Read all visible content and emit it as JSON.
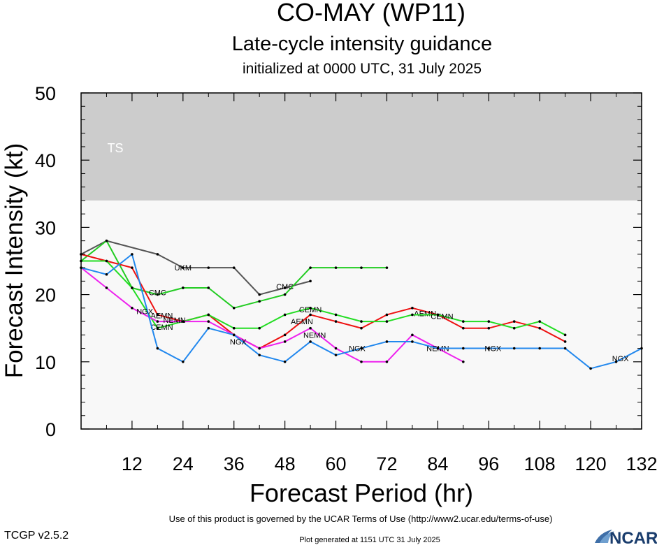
{
  "title": "CO-MAY (WP11)",
  "subtitle": "Late-cycle intensity guidance",
  "initialized": "initialized at 0000 UTC, 31 July 2025",
  "footer": {
    "version": "TCGP v2.5.2",
    "terms": "Use of this product is governed by the UCAR Terms of Use (http://www2.ucar.edu/terms-of-use)",
    "generated": "Plot generated at 1151 UTC   31 July 2025",
    "logo_text": "NCAR"
  },
  "chart_data": {
    "type": "line",
    "xlabel": "Forecast Period (hr)",
    "ylabel": "Forecast Intensity (kt)",
    "xlim": [
      0,
      132
    ],
    "ylim": [
      0,
      50
    ],
    "xticks": [
      12,
      24,
      36,
      48,
      60,
      72,
      84,
      96,
      108,
      120,
      132
    ],
    "yticks": [
      0,
      10,
      20,
      30,
      40,
      50
    ],
    "bands": [
      {
        "label": "TS",
        "from": 34,
        "to": 50,
        "color": "#cccccc"
      }
    ],
    "plot_background": "#f8f8f8",
    "series": [
      {
        "name": "UKM",
        "color": "#555555",
        "label_at": [
          24,
          24
        ],
        "points": [
          [
            0,
            26
          ],
          [
            6,
            28
          ],
          [
            18,
            26
          ],
          [
            24,
            24
          ],
          [
            30,
            24
          ],
          [
            36,
            24
          ],
          [
            42,
            20
          ],
          [
            48,
            21
          ],
          [
            54,
            22
          ]
        ]
      },
      {
        "name": "CMC",
        "color": "#22cc22",
        "label_at": [
          [
            18,
            20.3
          ],
          [
            48,
            21.2
          ]
        ],
        "points": [
          [
            0,
            25
          ],
          [
            6,
            28
          ],
          [
            12,
            21
          ],
          [
            18,
            20
          ],
          [
            24,
            21
          ],
          [
            30,
            21
          ],
          [
            36,
            18
          ],
          [
            42,
            19
          ],
          [
            48,
            20
          ],
          [
            54,
            24
          ],
          [
            60,
            24
          ],
          [
            66,
            24
          ],
          [
            72,
            24
          ]
        ]
      },
      {
        "name": "AEMN",
        "color": "#ee1111",
        "label_at": [
          [
            19,
            16.9
          ],
          [
            52,
            16
          ],
          [
            81,
            17.2
          ]
        ],
        "points": [
          [
            0,
            26
          ],
          [
            6,
            25
          ],
          [
            12,
            24
          ],
          [
            18,
            17
          ],
          [
            24,
            16
          ],
          [
            30,
            17
          ],
          [
            36,
            14
          ],
          [
            42,
            12
          ],
          [
            48,
            14
          ],
          [
            54,
            17
          ],
          [
            60,
            16
          ],
          [
            66,
            15
          ],
          [
            72,
            17
          ],
          [
            78,
            18
          ],
          [
            84,
            17
          ],
          [
            90,
            15
          ],
          [
            96,
            15
          ],
          [
            102,
            16
          ],
          [
            108,
            15
          ],
          [
            114,
            13
          ]
        ]
      },
      {
        "name": "CEMN",
        "color": "#22dd22",
        "label_at": [
          [
            19,
            15.2
          ],
          [
            54,
            17.8
          ],
          [
            85,
            16.8
          ]
        ],
        "points": [
          [
            0,
            25
          ],
          [
            6,
            25
          ],
          [
            12,
            21
          ],
          [
            18,
            15
          ],
          [
            24,
            16
          ],
          [
            30,
            17
          ],
          [
            36,
            15
          ],
          [
            42,
            15
          ],
          [
            48,
            17
          ],
          [
            54,
            18
          ],
          [
            60,
            17
          ],
          [
            66,
            16
          ],
          [
            72,
            16
          ],
          [
            78,
            17
          ],
          [
            84,
            17
          ],
          [
            90,
            16
          ],
          [
            96,
            16
          ],
          [
            102,
            15
          ],
          [
            108,
            16
          ],
          [
            114,
            14
          ]
        ]
      },
      {
        "name": "NEMN",
        "color": "#ee22ee",
        "label_at": [
          [
            22,
            16.2
          ],
          [
            55,
            14
          ],
          [
            84,
            12
          ]
        ],
        "points": [
          [
            0,
            24
          ],
          [
            6,
            21
          ],
          [
            12,
            18
          ],
          [
            18,
            16
          ],
          [
            24,
            16
          ],
          [
            30,
            16
          ],
          [
            36,
            14
          ],
          [
            42,
            12
          ],
          [
            48,
            13
          ],
          [
            54,
            15
          ],
          [
            60,
            12
          ],
          [
            66,
            10
          ],
          [
            72,
            10
          ],
          [
            78,
            14
          ],
          [
            84,
            12
          ],
          [
            90,
            10
          ]
        ]
      },
      {
        "name": "NGX",
        "color": "#2288ee",
        "label_at": [
          [
            15,
            17.5
          ],
          [
            37,
            13
          ],
          [
            65,
            12
          ],
          [
            97,
            12
          ],
          [
            127,
            10.5
          ]
        ],
        "points": [
          [
            0,
            24
          ],
          [
            6,
            23
          ],
          [
            12,
            26
          ],
          [
            18,
            12
          ],
          [
            24,
            10
          ],
          [
            30,
            15
          ],
          [
            36,
            14
          ],
          [
            42,
            11
          ],
          [
            48,
            10
          ],
          [
            54,
            13
          ],
          [
            60,
            11
          ],
          [
            66,
            12
          ],
          [
            72,
            13
          ],
          [
            78,
            13
          ],
          [
            84,
            12
          ],
          [
            90,
            12
          ],
          [
            96,
            12
          ],
          [
            102,
            12
          ],
          [
            108,
            12
          ],
          [
            114,
            12
          ],
          [
            120,
            9
          ],
          [
            126,
            10
          ],
          [
            132,
            12
          ]
        ]
      }
    ]
  }
}
